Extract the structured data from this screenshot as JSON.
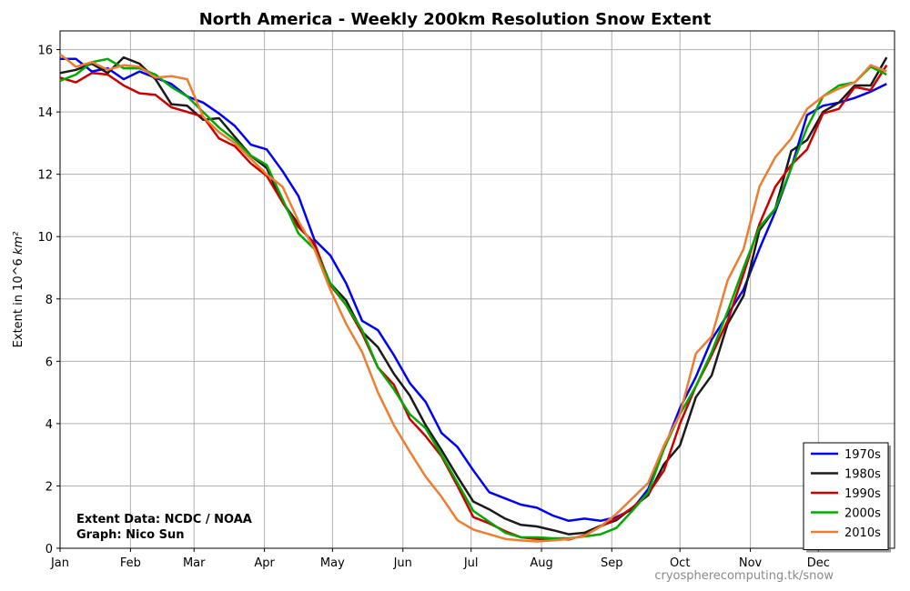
{
  "chart_data": {
    "type": "line",
    "title": "North America - Weekly 200km Resolution Snow Extent",
    "ylabel": "Extent in 10^6",
    "ylabel_unit": "km²",
    "xlabel": "",
    "ylim": [
      0,
      16.6
    ],
    "xlim": [
      0,
      52.5
    ],
    "yticks": [
      0,
      2,
      4,
      6,
      8,
      10,
      12,
      14,
      16
    ],
    "months": [
      "Jan",
      "Feb",
      "Mar",
      "Apr",
      "May",
      "Jun",
      "Jul",
      "Aug",
      "Sep",
      "Oct",
      "Nov",
      "Dec"
    ],
    "month_weeks": [
      0,
      4.43,
      8.43,
      12.86,
      17.14,
      21.57,
      25.86,
      30.29,
      34.71,
      39,
      43.43,
      47.71
    ],
    "grid": true,
    "legend_position": "bottom-right",
    "credit_lines": [
      "Extent Data: NCDC / NOAA",
      "Graph: Nico Sun"
    ],
    "source_text": "cryospherecomputing.tk/snow",
    "x_weeks": [
      0,
      1,
      2,
      3,
      4,
      5,
      6,
      7,
      8,
      9,
      10,
      11,
      12,
      13,
      14,
      15,
      16,
      17,
      18,
      19,
      20,
      21,
      22,
      23,
      24,
      25,
      26,
      27,
      28,
      29,
      30,
      31,
      32,
      33,
      34,
      35,
      36,
      37,
      38,
      39,
      40,
      41,
      42,
      43,
      44,
      45,
      46,
      47,
      48,
      49,
      50,
      51,
      52
    ],
    "series": [
      {
        "name": "1970s",
        "color": "#0000ff",
        "values": [
          15.7,
          15.7,
          15.3,
          15.4,
          15.05,
          15.3,
          15.1,
          14.9,
          14.5,
          14.3,
          13.95,
          13.55,
          12.95,
          12.8,
          12.1,
          11.3,
          9.9,
          9.4,
          8.5,
          7.3,
          7.0,
          6.2,
          5.3,
          4.7,
          3.7,
          3.25,
          2.5,
          1.8,
          1.6,
          1.4,
          1.3,
          1.05,
          0.88,
          0.95,
          0.88,
          1.0,
          1.25,
          1.9,
          3.2,
          4.5,
          5.5,
          6.7,
          7.5,
          8.3,
          9.6,
          10.8,
          12.2,
          13.9,
          14.2,
          14.3,
          14.45,
          14.65,
          14.9
        ]
      },
      {
        "name": "1980s",
        "color": "#1a1a1a",
        "values": [
          15.25,
          15.35,
          15.55,
          15.25,
          15.75,
          15.55,
          15.05,
          14.25,
          14.2,
          13.75,
          13.8,
          13.2,
          12.6,
          12.2,
          11.1,
          10.4,
          9.7,
          8.5,
          7.95,
          6.95,
          6.45,
          5.6,
          4.9,
          3.95,
          3.15,
          2.3,
          1.5,
          1.25,
          0.95,
          0.75,
          0.7,
          0.58,
          0.45,
          0.5,
          0.72,
          0.9,
          1.3,
          1.7,
          2.7,
          3.3,
          4.85,
          5.55,
          7.2,
          8.1,
          10.2,
          10.9,
          12.75,
          13.1,
          14.0,
          14.3,
          14.85,
          14.85,
          15.75
        ]
      },
      {
        "name": "1990s",
        "color": "#cc0000",
        "values": [
          15.1,
          14.95,
          15.25,
          15.2,
          14.85,
          14.6,
          14.55,
          14.15,
          14.0,
          13.85,
          13.15,
          12.9,
          12.35,
          11.95,
          11.1,
          10.3,
          9.8,
          8.45,
          7.8,
          6.9,
          5.8,
          5.25,
          4.15,
          3.6,
          2.95,
          2.0,
          1.0,
          0.8,
          0.55,
          0.35,
          0.3,
          0.3,
          0.28,
          0.42,
          0.7,
          0.95,
          1.3,
          1.75,
          2.5,
          4.0,
          5.2,
          6.2,
          7.3,
          8.8,
          10.4,
          11.6,
          12.3,
          12.8,
          13.95,
          14.1,
          14.8,
          14.7,
          15.5
        ]
      },
      {
        "name": "2000s",
        "color": "#00aa00",
        "values": [
          15.0,
          15.2,
          15.6,
          15.7,
          15.4,
          15.4,
          15.2,
          14.8,
          14.5,
          14.0,
          13.5,
          13.1,
          12.6,
          12.3,
          11.2,
          10.1,
          9.6,
          8.5,
          7.8,
          7.0,
          5.8,
          5.1,
          4.3,
          3.85,
          3.0,
          2.1,
          1.2,
          0.85,
          0.5,
          0.35,
          0.35,
          0.32,
          0.32,
          0.38,
          0.45,
          0.65,
          1.2,
          1.8,
          3.2,
          4.3,
          5.2,
          6.3,
          7.6,
          9.0,
          10.3,
          10.9,
          12.2,
          13.5,
          14.5,
          14.85,
          14.95,
          15.45,
          15.2
        ]
      },
      {
        "name": "2010s",
        "color": "#ee7d30",
        "values": [
          15.85,
          15.45,
          15.6,
          15.35,
          15.5,
          15.45,
          15.1,
          15.15,
          15.05,
          13.85,
          13.35,
          13.0,
          12.5,
          12.0,
          11.6,
          10.5,
          9.6,
          8.3,
          7.2,
          6.3,
          5.0,
          3.95,
          3.1,
          2.3,
          1.65,
          0.9,
          0.6,
          0.45,
          0.3,
          0.25,
          0.22,
          0.25,
          0.3,
          0.4,
          0.7,
          1.1,
          1.6,
          2.1,
          3.3,
          4.3,
          6.25,
          6.8,
          8.6,
          9.6,
          11.6,
          12.55,
          13.15,
          14.1,
          14.5,
          14.75,
          14.95,
          15.5,
          15.3
        ]
      }
    ]
  }
}
